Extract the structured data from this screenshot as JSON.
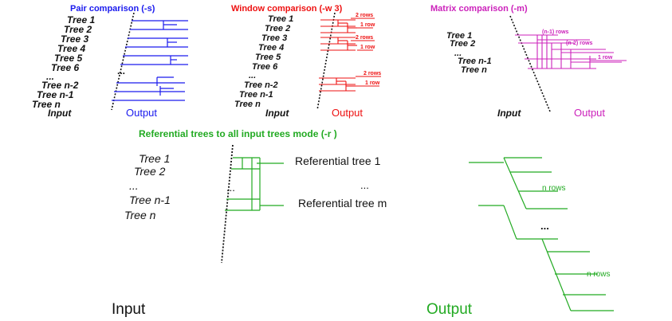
{
  "colors": {
    "pair": "#1a1aee",
    "window": "#ee1111",
    "matrix": "#cc22bb",
    "referential": "#22aa22",
    "ink": "#111111"
  },
  "pair": {
    "title": "Pair comparison (-s)",
    "trees": [
      "Tree 1",
      "Tree 2",
      "Tree 3",
      "Tree 4",
      "Tree 5",
      "Tree 6"
    ],
    "ellipsis": "...",
    "trees_end": [
      "Tree n-2",
      "Tree n-1",
      "Tree n"
    ],
    "input_label": "Input",
    "output_label": "Output"
  },
  "window": {
    "title": "Window comparison (-w 3)",
    "trees": [
      "Tree 1",
      "Tree 2",
      "Tree 3",
      "Tree 4",
      "Tree 5",
      "Tree 6"
    ],
    "ellipsis": "...",
    "trees_end": [
      "Tree n-2",
      "Tree n-1",
      "Tree n"
    ],
    "notes": [
      "2 rows",
      "1 row",
      "2 rows",
      "1 row",
      "2 rows",
      "1 row"
    ],
    "input_label": "Input",
    "output_label": "Output"
  },
  "matrix": {
    "title": "Matrix comparison (-m)",
    "trees": [
      "Tree 1",
      "Tree 2"
    ],
    "ellipsis": "...",
    "trees_end": [
      "Tree n-1",
      "Tree n"
    ],
    "notes": [
      "(n-1) rows",
      "(n-2) rows",
      "1 row"
    ],
    "input_label": "Input",
    "output_label": "Output"
  },
  "referential": {
    "title": "Referential trees to all input trees mode (-r )",
    "trees": [
      "Tree 1",
      "Tree 2"
    ],
    "ellipsis": "...",
    "trees_end": [
      "Tree n-1",
      "Tree n"
    ],
    "refs": [
      "Referential tree 1",
      "Referential tree m"
    ],
    "ref_ellipsis": "...",
    "out_ellipsis": "...",
    "notes": [
      "n rows",
      "n rows"
    ],
    "input_label": "Input",
    "output_label": "Output"
  }
}
